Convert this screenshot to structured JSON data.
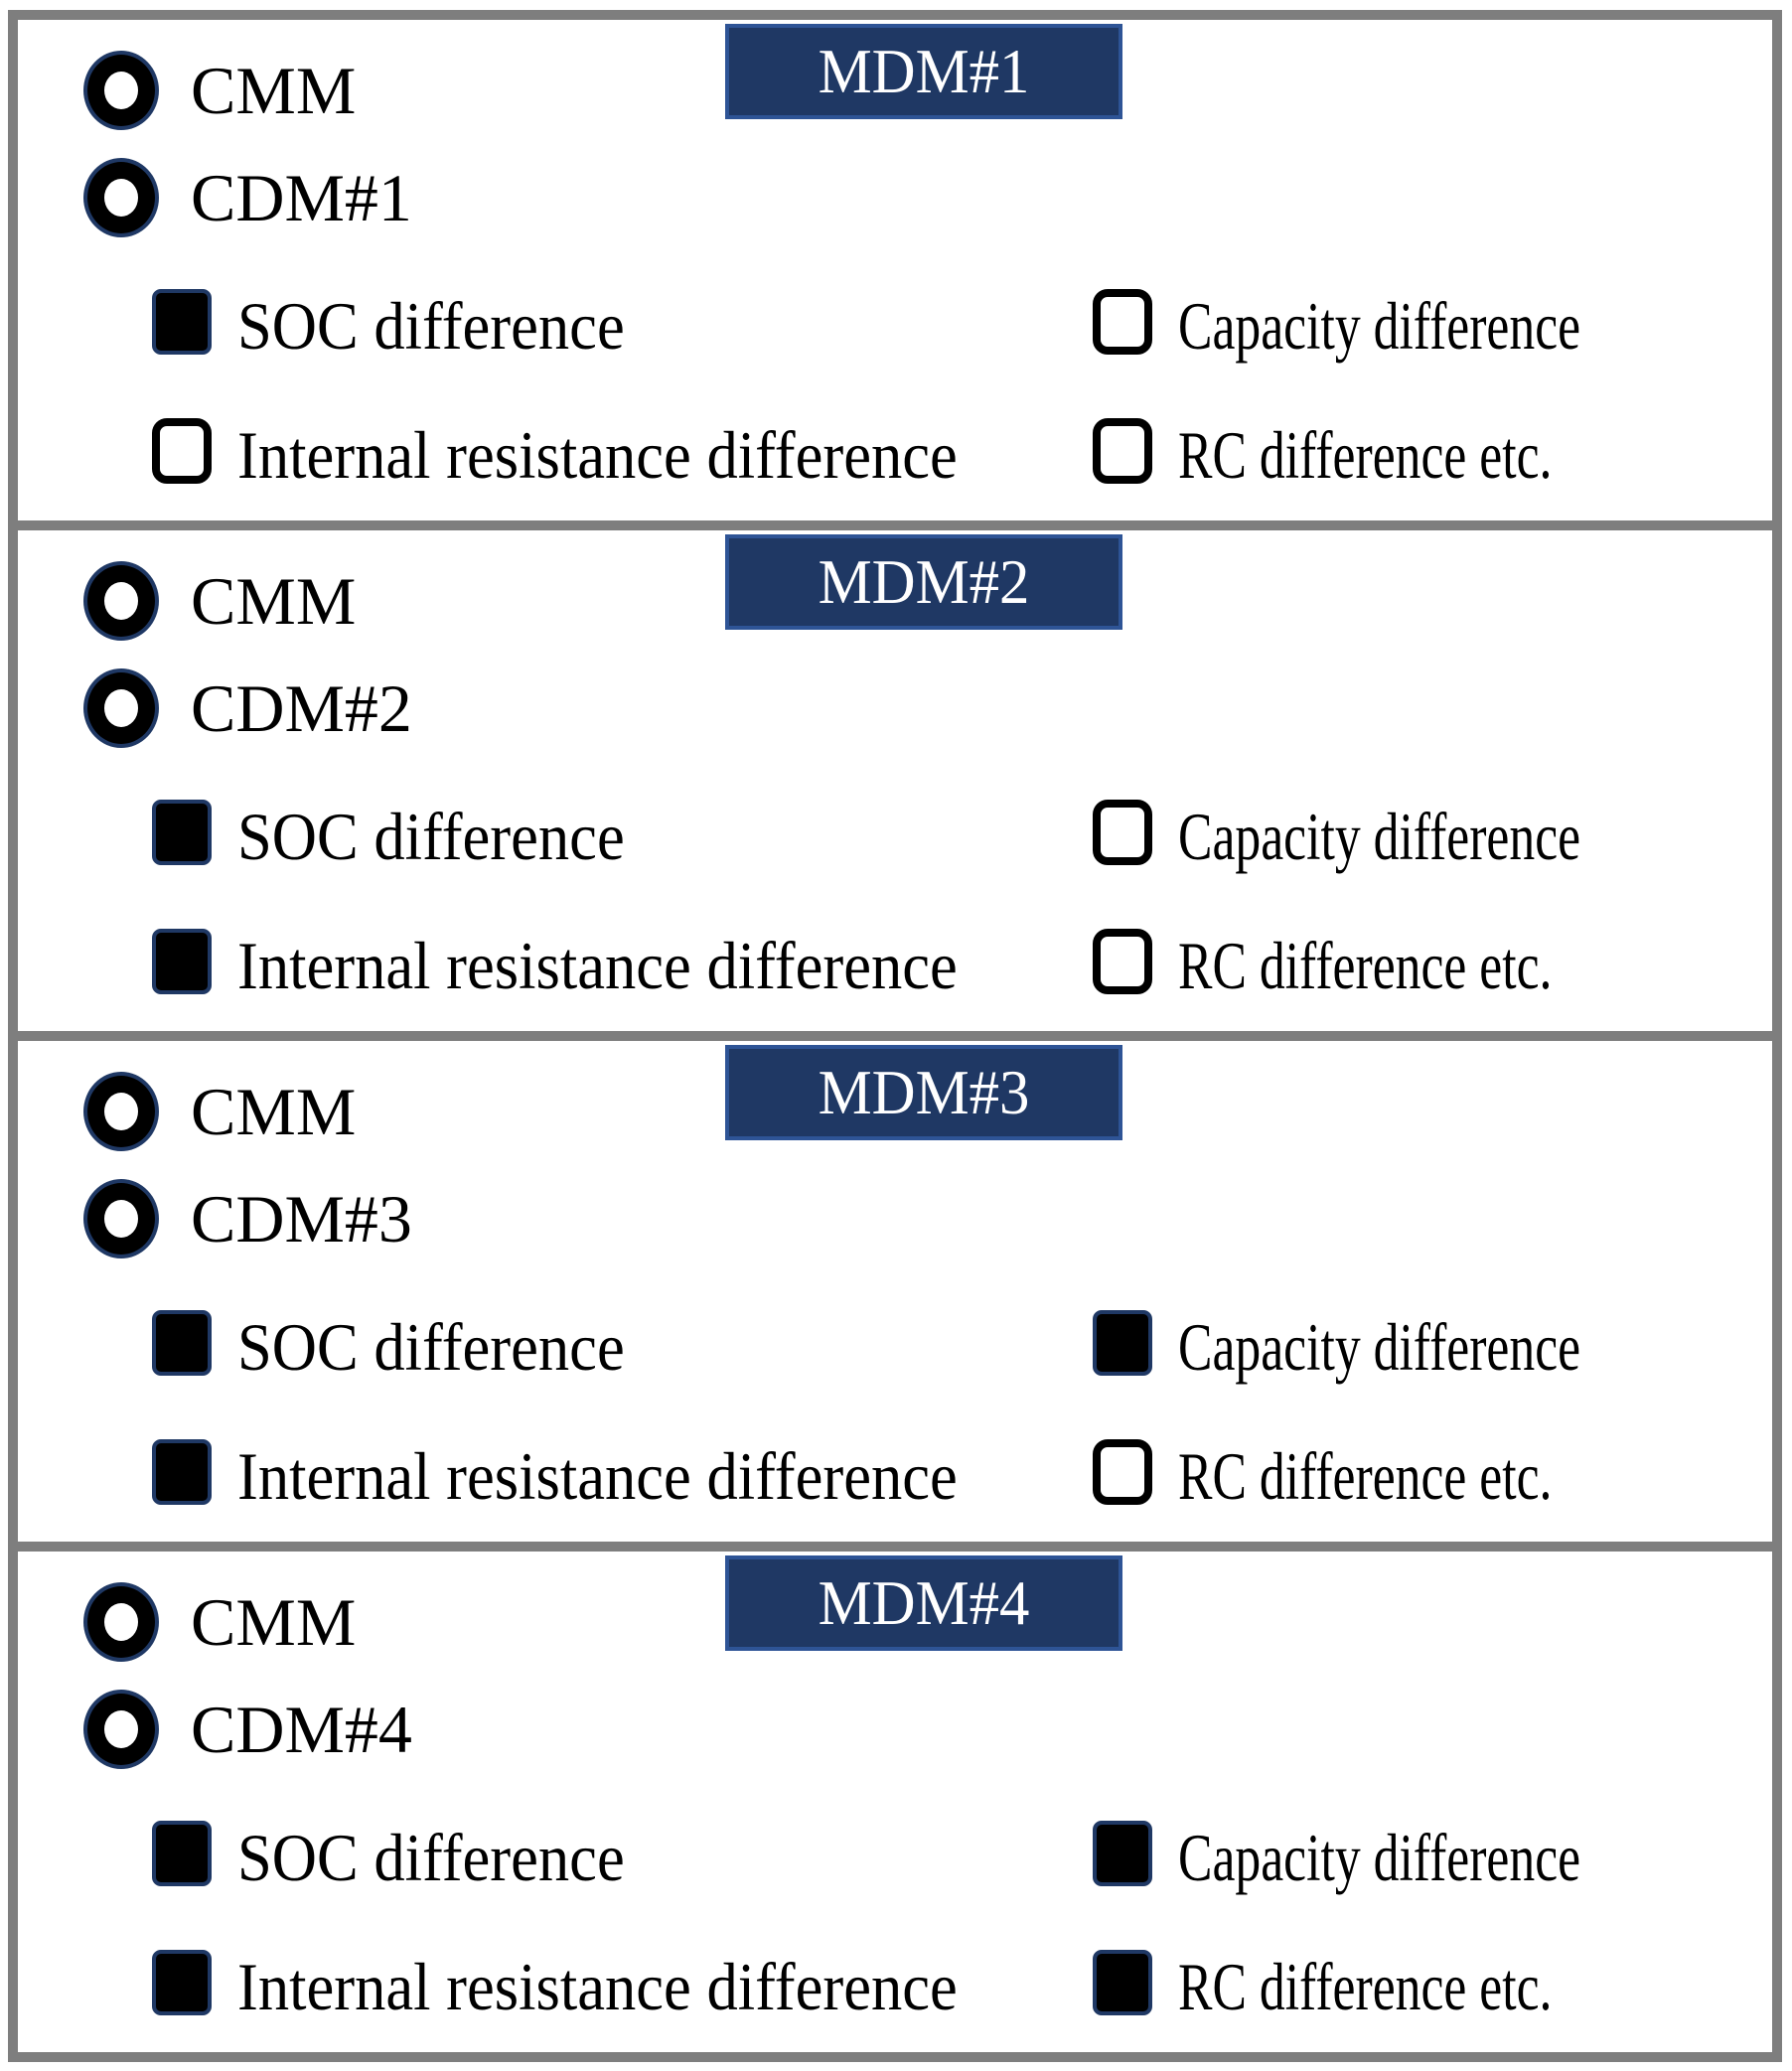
{
  "colors": {
    "title_fill": "#1f3864",
    "title_border": "#2e5496",
    "title_text": "#ffffff",
    "panel_border": "#7e7e7e",
    "control_ink": "#000000",
    "control_accent": "#1f3864"
  },
  "figure": {
    "panels": [
      {
        "title": "MDM#1",
        "radios": [
          {
            "label": "CMM",
            "selected": true
          },
          {
            "label": "CDM#1",
            "selected": true
          }
        ],
        "checkboxes": [
          {
            "label": "SOC difference",
            "checked": true
          },
          {
            "label": "Capacity difference",
            "checked": false
          },
          {
            "label": "Internal resistance difference",
            "checked": false
          },
          {
            "label": "RC difference etc.",
            "checked": false
          }
        ]
      },
      {
        "title": "MDM#2",
        "radios": [
          {
            "label": "CMM",
            "selected": true
          },
          {
            "label": "CDM#2",
            "selected": true
          }
        ],
        "checkboxes": [
          {
            "label": "SOC difference",
            "checked": true
          },
          {
            "label": "Capacity difference",
            "checked": false
          },
          {
            "label": "Internal resistance difference",
            "checked": true
          },
          {
            "label": "RC difference etc.",
            "checked": false
          }
        ]
      },
      {
        "title": "MDM#3",
        "radios": [
          {
            "label": "CMM",
            "selected": true
          },
          {
            "label": "CDM#3",
            "selected": true
          }
        ],
        "checkboxes": [
          {
            "label": "SOC difference",
            "checked": true
          },
          {
            "label": "Capacity difference",
            "checked": true
          },
          {
            "label": "Internal resistance difference",
            "checked": true
          },
          {
            "label": "RC difference etc.",
            "checked": false
          }
        ]
      },
      {
        "title": "MDM#4",
        "radios": [
          {
            "label": "CMM",
            "selected": true
          },
          {
            "label": "CDM#4",
            "selected": true
          }
        ],
        "checkboxes": [
          {
            "label": "SOC difference",
            "checked": true
          },
          {
            "label": "Capacity difference",
            "checked": true
          },
          {
            "label": "Internal resistance difference",
            "checked": true
          },
          {
            "label": "RC difference etc.",
            "checked": true
          }
        ]
      }
    ]
  }
}
